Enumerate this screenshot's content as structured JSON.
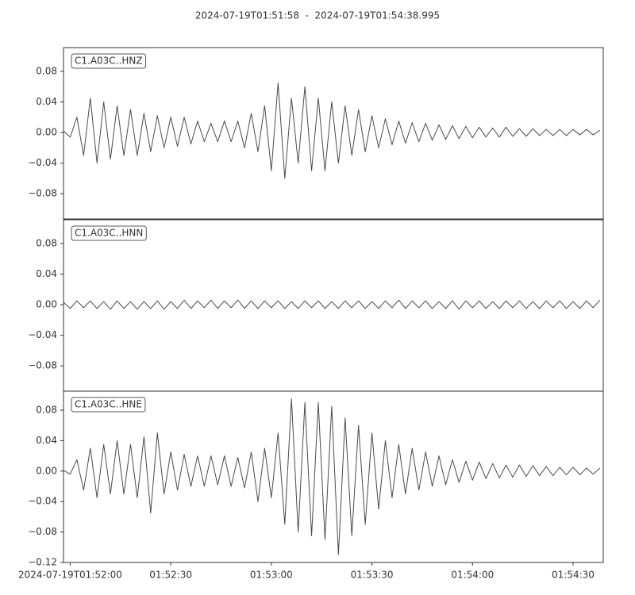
{
  "chart_data": [
    {
      "type": "line",
      "title": "2024-07-19T01:51:58  -  2024-07-19T01:54:38.995",
      "xlim": [
        "2024-07-19T01:51:58",
        "2024-07-19T01:54:38.995"
      ],
      "ylim": [
        -0.113,
        0.111
      ],
      "yticks": [
        0.08,
        0.04,
        {
          "value": 0,
          "label": "0.00"
        },
        {
          "value": -0.04,
          "label": "−0.04"
        },
        {
          "value": -0.08,
          "label": "−0.08"
        }
      ],
      "x": [
        "2024-07-19T01:51:58",
        "2024-07-19T01:52:00",
        "2024-07-19T01:52:02",
        "2024-07-19T01:52:04",
        "2024-07-19T01:52:06",
        "2024-07-19T01:52:08",
        "2024-07-19T01:52:10",
        "2024-07-19T01:52:12",
        "2024-07-19T01:52:14",
        "2024-07-19T01:52:16",
        "2024-07-19T01:52:18",
        "2024-07-19T01:52:20",
        "2024-07-19T01:52:22",
        "2024-07-19T01:52:24",
        "2024-07-19T01:52:26",
        "2024-07-19T01:52:28",
        "2024-07-19T01:52:30",
        "2024-07-19T01:52:32",
        "2024-07-19T01:52:34",
        "2024-07-19T01:52:36",
        "2024-07-19T01:52:38",
        "2024-07-19T01:52:40",
        "2024-07-19T01:52:42",
        "2024-07-19T01:52:44",
        "2024-07-19T01:52:46",
        "2024-07-19T01:52:48",
        "2024-07-19T01:52:50",
        "2024-07-19T01:52:52",
        "2024-07-19T01:52:54",
        "2024-07-19T01:52:56",
        "2024-07-19T01:52:58",
        "2024-07-19T01:53:00",
        "2024-07-19T01:53:02",
        "2024-07-19T01:53:04",
        "2024-07-19T01:53:06",
        "2024-07-19T01:53:08",
        "2024-07-19T01:53:10",
        "2024-07-19T01:53:12",
        "2024-07-19T01:53:14",
        "2024-07-19T01:53:16",
        "2024-07-19T01:53:18",
        "2024-07-19T01:53:20",
        "2024-07-19T01:53:22",
        "2024-07-19T01:53:24",
        "2024-07-19T01:53:26",
        "2024-07-19T01:53:28",
        "2024-07-19T01:53:30",
        "2024-07-19T01:53:32",
        "2024-07-19T01:53:34",
        "2024-07-19T01:53:36",
        "2024-07-19T01:53:38",
        "2024-07-19T01:53:40",
        "2024-07-19T01:53:42",
        "2024-07-19T01:53:44",
        "2024-07-19T01:53:46",
        "2024-07-19T01:53:48",
        "2024-07-19T01:53:50",
        "2024-07-19T01:53:52",
        "2024-07-19T01:53:54",
        "2024-07-19T01:53:56",
        "2024-07-19T01:53:58",
        "2024-07-19T01:54:00",
        "2024-07-19T01:54:02",
        "2024-07-19T01:54:04",
        "2024-07-19T01:54:06",
        "2024-07-19T01:54:08",
        "2024-07-19T01:54:10",
        "2024-07-19T01:54:12",
        "2024-07-19T01:54:14",
        "2024-07-19T01:54:16",
        "2024-07-19T01:54:18",
        "2024-07-19T01:54:20",
        "2024-07-19T01:54:22",
        "2024-07-19T01:54:24",
        "2024-07-19T01:54:26",
        "2024-07-19T01:54:28",
        "2024-07-19T01:54:30",
        "2024-07-19T01:54:32",
        "2024-07-19T01:54:34",
        "2024-07-19T01:54:36",
        "2024-07-19T01:54:38"
      ],
      "series": [
        {
          "name": "C1.A03C..HNZ",
          "color": "#4a4a4a",
          "values": [
            0.002,
            -0.006,
            0.02,
            -0.03,
            0.045,
            -0.04,
            0.04,
            -0.035,
            0.035,
            -0.03,
            0.03,
            -0.03,
            0.025,
            -0.025,
            0.022,
            -0.02,
            0.02,
            -0.018,
            0.02,
            -0.015,
            0.015,
            -0.012,
            0.012,
            -0.012,
            0.015,
            -0.012,
            0.015,
            -0.02,
            0.025,
            -0.025,
            0.035,
            -0.05,
            0.065,
            -0.06,
            0.045,
            -0.04,
            0.06,
            -0.05,
            0.045,
            -0.05,
            0.04,
            -0.04,
            0.035,
            -0.03,
            0.03,
            -0.025,
            0.022,
            -0.02,
            0.018,
            -0.016,
            0.015,
            -0.014,
            0.013,
            -0.012,
            0.012,
            -0.01,
            0.01,
            -0.009,
            0.009,
            -0.008,
            0.008,
            -0.007,
            0.007,
            -0.006,
            0.006,
            -0.006,
            0.007,
            -0.005,
            0.005,
            -0.005,
            0.005,
            -0.004,
            0.004,
            -0.004,
            0.004,
            -0.004,
            0.004,
            -0.003,
            0.004,
            -0.003,
            0.003
          ]
        }
      ]
    },
    {
      "type": "line",
      "xlim": [
        "2024-07-19T01:51:58",
        "2024-07-19T01:54:38.995"
      ],
      "ylim": [
        -0.113,
        0.111
      ],
      "yticks": [
        0.08,
        0.04,
        {
          "value": 0,
          "label": "0.00"
        },
        {
          "value": -0.04,
          "label": "−0.04"
        },
        {
          "value": -0.08,
          "label": "−0.08"
        }
      ],
      "x": [
        "2024-07-19T01:51:58",
        "2024-07-19T01:52:00",
        "2024-07-19T01:52:02",
        "2024-07-19T01:52:04",
        "2024-07-19T01:52:06",
        "2024-07-19T01:52:08",
        "2024-07-19T01:52:10",
        "2024-07-19T01:52:12",
        "2024-07-19T01:52:14",
        "2024-07-19T01:52:16",
        "2024-07-19T01:52:18",
        "2024-07-19T01:52:20",
        "2024-07-19T01:52:22",
        "2024-07-19T01:52:24",
        "2024-07-19T01:52:26",
        "2024-07-19T01:52:28",
        "2024-07-19T01:52:30",
        "2024-07-19T01:52:32",
        "2024-07-19T01:52:34",
        "2024-07-19T01:52:36",
        "2024-07-19T01:52:38",
        "2024-07-19T01:52:40",
        "2024-07-19T01:52:42",
        "2024-07-19T01:52:44",
        "2024-07-19T01:52:46",
        "2024-07-19T01:52:48",
        "2024-07-19T01:52:50",
        "2024-07-19T01:52:52",
        "2024-07-19T01:52:54",
        "2024-07-19T01:52:56",
        "2024-07-19T01:52:58",
        "2024-07-19T01:53:00",
        "2024-07-19T01:53:02",
        "2024-07-19T01:53:04",
        "2024-07-19T01:53:06",
        "2024-07-19T01:53:08",
        "2024-07-19T01:53:10",
        "2024-07-19T01:53:12",
        "2024-07-19T01:53:14",
        "2024-07-19T01:53:16",
        "2024-07-19T01:53:18",
        "2024-07-19T01:53:20",
        "2024-07-19T01:53:22",
        "2024-07-19T01:53:24",
        "2024-07-19T01:53:26",
        "2024-07-19T01:53:28",
        "2024-07-19T01:53:30",
        "2024-07-19T01:53:32",
        "2024-07-19T01:53:34",
        "2024-07-19T01:53:36",
        "2024-07-19T01:53:38",
        "2024-07-19T01:53:40",
        "2024-07-19T01:53:42",
        "2024-07-19T01:53:44",
        "2024-07-19T01:53:46",
        "2024-07-19T01:53:48",
        "2024-07-19T01:53:50",
        "2024-07-19T01:53:52",
        "2024-07-19T01:53:54",
        "2024-07-19T01:53:56",
        "2024-07-19T01:53:58",
        "2024-07-19T01:54:00",
        "2024-07-19T01:54:02",
        "2024-07-19T01:54:04",
        "2024-07-19T01:54:06",
        "2024-07-19T01:54:08",
        "2024-07-19T01:54:10",
        "2024-07-19T01:54:12",
        "2024-07-19T01:54:14",
        "2024-07-19T01:54:16",
        "2024-07-19T01:54:18",
        "2024-07-19T01:54:20",
        "2024-07-19T01:54:22",
        "2024-07-19T01:54:24",
        "2024-07-19T01:54:26",
        "2024-07-19T01:54:28",
        "2024-07-19T01:54:30",
        "2024-07-19T01:54:32",
        "2024-07-19T01:54:34",
        "2024-07-19T01:54:36",
        "2024-07-19T01:54:38"
      ],
      "series": [
        {
          "name": "C1.A03C..HNN",
          "color": "#4a4a4a",
          "values": [
            0.003,
            -0.005,
            0.005,
            -0.004,
            0.005,
            -0.005,
            0.004,
            -0.006,
            0.005,
            -0.005,
            0.004,
            -0.006,
            0.004,
            -0.005,
            0.005,
            -0.006,
            0.004,
            -0.005,
            0.006,
            -0.005,
            0.005,
            -0.004,
            0.006,
            -0.005,
            0.005,
            -0.004,
            0.006,
            -0.005,
            0.005,
            -0.005,
            0.005,
            -0.004,
            0.005,
            -0.005,
            0.004,
            -0.005,
            0.005,
            -0.004,
            0.005,
            -0.005,
            0.004,
            -0.005,
            0.005,
            -0.004,
            0.005,
            -0.005,
            0.004,
            -0.005,
            0.005,
            -0.004,
            0.006,
            -0.005,
            0.005,
            -0.004,
            0.005,
            -0.005,
            0.004,
            -0.005,
            0.005,
            -0.006,
            0.005,
            -0.004,
            0.005,
            -0.005,
            0.004,
            -0.005,
            0.005,
            -0.004,
            0.005,
            -0.005,
            0.004,
            -0.005,
            0.005,
            -0.004,
            0.005,
            -0.005,
            0.004,
            -0.005,
            0.005,
            -0.004,
            0.006
          ]
        }
      ]
    },
    {
      "type": "line",
      "xlim": [
        "2024-07-19T01:51:58",
        "2024-07-19T01:54:38.995"
      ],
      "ylim": [
        -0.12,
        0.105
      ],
      "yticks": [
        0.08,
        0.04,
        {
          "value": 0,
          "label": "0.00"
        },
        {
          "value": -0.04,
          "label": "−0.04"
        },
        {
          "value": -0.08,
          "label": "−0.08"
        },
        {
          "value": -0.12,
          "label": "−0.12"
        }
      ],
      "xticks": [
        "2024-07-19T01:52:00",
        {
          "value": "2024-07-19T01:52:30",
          "label": "01:52:30"
        },
        {
          "value": "2024-07-19T01:53:00",
          "label": "01:53:00"
        },
        {
          "value": "2024-07-19T01:53:30",
          "label": "01:53:30"
        },
        {
          "value": "2024-07-19T01:54:00",
          "label": "01:54:00"
        },
        {
          "value": "2024-07-19T01:54:30",
          "label": "01:54:30"
        }
      ],
      "x": [
        "2024-07-19T01:51:58",
        "2024-07-19T01:52:00",
        "2024-07-19T01:52:02",
        "2024-07-19T01:52:04",
        "2024-07-19T01:52:06",
        "2024-07-19T01:52:08",
        "2024-07-19T01:52:10",
        "2024-07-19T01:52:12",
        "2024-07-19T01:52:14",
        "2024-07-19T01:52:16",
        "2024-07-19T01:52:18",
        "2024-07-19T01:52:20",
        "2024-07-19T01:52:22",
        "2024-07-19T01:52:24",
        "2024-07-19T01:52:26",
        "2024-07-19T01:52:28",
        "2024-07-19T01:52:30",
        "2024-07-19T01:52:32",
        "2024-07-19T01:52:34",
        "2024-07-19T01:52:36",
        "2024-07-19T01:52:38",
        "2024-07-19T01:52:40",
        "2024-07-19T01:52:42",
        "2024-07-19T01:52:44",
        "2024-07-19T01:52:46",
        "2024-07-19T01:52:48",
        "2024-07-19T01:52:50",
        "2024-07-19T01:52:52",
        "2024-07-19T01:52:54",
        "2024-07-19T01:52:56",
        "2024-07-19T01:52:58",
        "2024-07-19T01:53:00",
        "2024-07-19T01:53:02",
        "2024-07-19T01:53:04",
        "2024-07-19T01:53:06",
        "2024-07-19T01:53:08",
        "2024-07-19T01:53:10",
        "2024-07-19T01:53:12",
        "2024-07-19T01:53:14",
        "2024-07-19T01:53:16",
        "2024-07-19T01:53:18",
        "2024-07-19T01:53:20",
        "2024-07-19T01:53:22",
        "2024-07-19T01:53:24",
        "2024-07-19T01:53:26",
        "2024-07-19T01:53:28",
        "2024-07-19T01:53:30",
        "2024-07-19T01:53:32",
        "2024-07-19T01:53:34",
        "2024-07-19T01:53:36",
        "2024-07-19T01:53:38",
        "2024-07-19T01:53:40",
        "2024-07-19T01:53:42",
        "2024-07-19T01:53:44",
        "2024-07-19T01:53:46",
        "2024-07-19T01:53:48",
        "2024-07-19T01:53:50",
        "2024-07-19T01:53:52",
        "2024-07-19T01:53:54",
        "2024-07-19T01:53:56",
        "2024-07-19T01:53:58",
        "2024-07-19T01:54:00",
        "2024-07-19T01:54:02",
        "2024-07-19T01:54:04",
        "2024-07-19T01:54:06",
        "2024-07-19T01:54:08",
        "2024-07-19T01:54:10",
        "2024-07-19T01:54:12",
        "2024-07-19T01:54:14",
        "2024-07-19T01:54:16",
        "2024-07-19T01:54:18",
        "2024-07-19T01:54:20",
        "2024-07-19T01:54:22",
        "2024-07-19T01:54:24",
        "2024-07-19T01:54:26",
        "2024-07-19T01:54:28",
        "2024-07-19T01:54:30",
        "2024-07-19T01:54:32",
        "2024-07-19T01:54:34",
        "2024-07-19T01:54:36",
        "2024-07-19T01:54:38"
      ],
      "series": [
        {
          "name": "C1.A03C..HNE",
          "color": "#4a4a4a",
          "values": [
            0.001,
            -0.004,
            0.015,
            -0.025,
            0.03,
            -0.035,
            0.035,
            -0.03,
            0.04,
            -0.03,
            0.035,
            -0.035,
            0.045,
            -0.055,
            0.05,
            -0.03,
            0.025,
            -0.025,
            0.022,
            -0.02,
            0.02,
            -0.02,
            0.02,
            -0.018,
            0.02,
            -0.02,
            0.018,
            -0.022,
            0.025,
            -0.04,
            0.03,
            -0.035,
            0.05,
            -0.07,
            0.095,
            -0.08,
            0.09,
            -0.085,
            0.09,
            -0.09,
            0.085,
            -0.11,
            0.07,
            -0.085,
            0.06,
            -0.07,
            0.05,
            -0.05,
            0.04,
            -0.035,
            0.035,
            -0.03,
            0.03,
            -0.025,
            0.025,
            -0.02,
            0.02,
            -0.018,
            0.015,
            -0.015,
            0.013,
            -0.012,
            0.012,
            -0.01,
            0.01,
            -0.009,
            0.008,
            -0.008,
            0.008,
            -0.007,
            0.007,
            -0.006,
            0.006,
            -0.006,
            0.005,
            -0.005,
            0.005,
            -0.005,
            0.004,
            -0.004,
            0.004
          ]
        }
      ]
    }
  ]
}
